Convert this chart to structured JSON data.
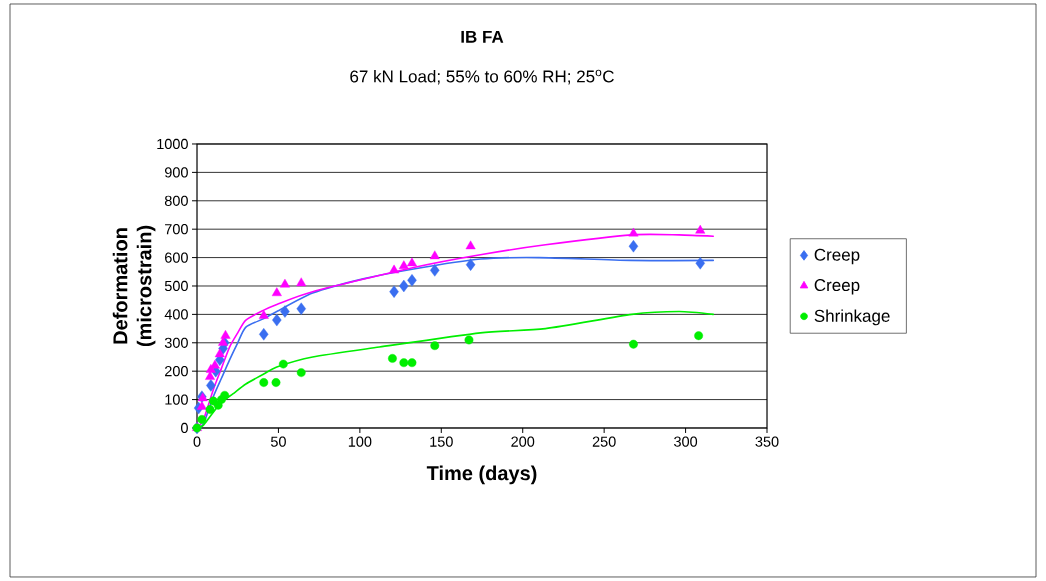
{
  "chart_data": {
    "type": "scatter",
    "title": "IB FA",
    "subtitle": "67 kN Load; 55% to 60% RH; 25$^{o}$C",
    "xlabel": "Time (days)",
    "ylabel": "Deformation (microstrain)",
    "xlim": [
      0,
      350
    ],
    "xticks": [
      0,
      50,
      100,
      150,
      200,
      250,
      300,
      350
    ],
    "ylim": [
      0,
      1000
    ],
    "yticks": [
      0,
      100,
      200,
      300,
      400,
      500,
      600,
      700,
      800,
      900,
      1000
    ],
    "grid": "y",
    "legend": "right",
    "series": [
      {
        "type": "line",
        "color": "#3a6ef0",
        "marker": "none",
        "x": [
          0,
          4,
          10,
          15,
          20,
          25,
          30,
          41,
          49,
          71,
          102,
          133,
          174,
          210,
          266,
          317
        ],
        "values": [
          0,
          15,
          110,
          175,
          240,
          300,
          355,
          385,
          410,
          475,
          525,
          560,
          595,
          600,
          590,
          590
        ]
      },
      {
        "type": "line",
        "color": "#ff00ff",
        "marker": "none",
        "x": [
          0,
          4,
          10,
          15,
          20,
          25,
          30,
          41,
          49,
          71,
          133,
          174,
          214,
          267,
          296,
          317
        ],
        "values": [
          0,
          30,
          135,
          210,
          285,
          335,
          380,
          415,
          435,
          480,
          565,
          610,
          645,
          680,
          680,
          675
        ]
      },
      {
        "type": "line",
        "color": "#00ee00",
        "marker": "none",
        "x": [
          0,
          4,
          14,
          22,
          30,
          41,
          49,
          71,
          112,
          174,
          214,
          267,
          296,
          317
        ],
        "values": [
          0,
          10,
          85,
          120,
          155,
          190,
          215,
          250,
          285,
          335,
          350,
          400,
          410,
          400
        ]
      },
      {
        "name": "Creep",
        "color": "#3a6ef0",
        "marker": "diamond",
        "x": [
          0,
          1,
          3,
          8.5,
          11.5,
          14,
          16,
          17,
          41,
          49,
          54,
          64,
          121,
          127,
          132,
          146,
          168,
          268,
          309
        ],
        "values": [
          0,
          70,
          110,
          150,
          200,
          240,
          280,
          300,
          330,
          380,
          410,
          420,
          480,
          500,
          520,
          555,
          575,
          640,
          580
        ]
      },
      {
        "name": "Creep",
        "color": "#ff00ff",
        "marker": "triangle",
        "x": [
          0,
          3,
          3.5,
          8,
          8.5,
          11,
          14,
          16,
          17.5,
          41,
          49,
          54,
          64,
          121,
          127,
          132,
          146,
          168,
          268,
          309
        ],
        "values": [
          0,
          75,
          105,
          180,
          205,
          220,
          260,
          300,
          325,
          395,
          475,
          505,
          510,
          555,
          570,
          580,
          605,
          640,
          685,
          695
        ]
      },
      {
        "name": "Shrinkage",
        "color": "#00ee00",
        "marker": "circle",
        "x": [
          0,
          3,
          8,
          10,
          13,
          15,
          17,
          41,
          48.5,
          53,
          64,
          120,
          127,
          132,
          146,
          167,
          268,
          308
        ],
        "values": [
          0,
          30,
          65,
          95,
          80,
          100,
          115,
          160,
          160,
          225,
          195,
          245,
          230,
          230,
          290,
          310,
          295,
          325
        ]
      }
    ]
  }
}
